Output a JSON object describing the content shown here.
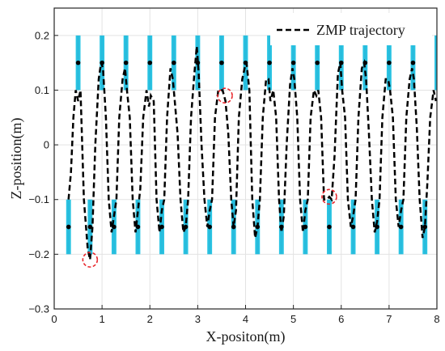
{
  "chart_data": {
    "type": "line",
    "xlabel": "X-positon(m)",
    "ylabel": "Z-position(m)",
    "xlim": [
      0,
      8
    ],
    "ylim": [
      -0.3,
      0.25
    ],
    "x_ticks": [
      0,
      1,
      2,
      3,
      4,
      5,
      6,
      7,
      8
    ],
    "y_ticks": [
      -0.3,
      -0.2,
      -0.1,
      0,
      0.1,
      0.2
    ],
    "x_tick_labels": [
      "0",
      "1",
      "2",
      "3",
      "4",
      "5",
      "6",
      "7",
      "8"
    ],
    "y_tick_labels": [
      "−0.3",
      "−0.2",
      "−0.1",
      "0",
      "0.1",
      "0.2"
    ],
    "grid": true,
    "legend": {
      "position": "top-right",
      "entries": [
        "ZMP trajectory"
      ]
    },
    "footsteps": {
      "color": "#2cc8e6",
      "width": 0.1,
      "upper": {
        "x": [
          0.5,
          1.0,
          1.5,
          2.0,
          2.5,
          3.0,
          3.5,
          4.0,
          4.5,
          5.0,
          5.5,
          6.0,
          6.5,
          7.0,
          7.5,
          8.0
        ],
        "z_range": [
          0.1,
          0.2
        ]
      },
      "lower": {
        "x": [
          0.3,
          0.75,
          1.25,
          1.75,
          2.25,
          2.75,
          3.25,
          3.75,
          4.25,
          4.75,
          5.25,
          5.75,
          6.25,
          6.75,
          7.25,
          7.75
        ],
        "z_range": [
          -0.2,
          -0.1
        ]
      }
    },
    "markers": {
      "upper": {
        "x": [
          0.5,
          1.0,
          1.5,
          2.0,
          2.5,
          3.0,
          3.5,
          4.0,
          4.5,
          5.0,
          5.5,
          6.0,
          6.5,
          7.0,
          7.5
        ],
        "z": 0.15
      },
      "lower": {
        "x": [
          0.3,
          0.75,
          1.25,
          1.75,
          2.25,
          2.75,
          3.25,
          3.75,
          4.25,
          4.75,
          5.25,
          5.75,
          6.25,
          6.75,
          7.25,
          7.75
        ],
        "z": -0.15
      }
    },
    "highlights": [
      {
        "x": 0.75,
        "z": -0.21
      },
      {
        "x": 3.57,
        "z": 0.09
      },
      {
        "x": 5.75,
        "z": -0.095
      }
    ],
    "series": [
      {
        "name": "ZMP trajectory",
        "style": "dashed",
        "color": "#000000",
        "x": [
          0.3,
          0.35,
          0.4,
          0.45,
          0.5,
          0.55,
          0.62,
          0.7,
          0.75,
          0.8,
          0.86,
          0.93,
          0.98,
          1.02,
          1.08,
          1.14,
          1.2,
          1.25,
          1.3,
          1.36,
          1.43,
          1.48,
          1.52,
          1.58,
          1.64,
          1.7,
          1.75,
          1.8,
          1.86,
          1.93,
          1.98,
          2.02,
          2.08,
          2.14,
          2.2,
          2.25,
          2.3,
          2.36,
          2.43,
          2.48,
          2.52,
          2.58,
          2.64,
          2.7,
          2.75,
          2.8,
          2.86,
          2.93,
          2.98,
          3.02,
          3.08,
          3.14,
          3.2,
          3.25,
          3.3,
          3.36,
          3.43,
          3.48,
          3.52,
          3.58,
          3.64,
          3.7,
          3.75,
          3.8,
          3.86,
          3.93,
          3.98,
          4.02,
          4.08,
          4.14,
          4.2,
          4.25,
          4.3,
          4.36,
          4.43,
          4.48,
          4.52,
          4.58,
          4.64,
          4.7,
          4.75,
          4.8,
          4.86,
          4.93,
          4.98,
          5.02,
          5.08,
          5.14,
          5.2,
          5.25,
          5.3,
          5.36,
          5.43,
          5.48,
          5.52,
          5.58,
          5.64,
          5.7,
          5.75,
          5.8,
          5.86,
          5.93,
          5.98,
          6.02,
          6.08,
          6.14,
          6.2,
          6.25,
          6.3,
          6.36,
          6.43,
          6.48,
          6.52,
          6.58,
          6.64,
          6.7,
          6.75,
          6.8,
          6.86,
          6.93,
          6.98,
          7.02,
          7.08,
          7.14,
          7.2,
          7.25,
          7.3,
          7.36,
          7.43,
          7.48,
          7.52,
          7.58,
          7.64,
          7.7,
          7.75,
          7.8,
          7.86,
          7.93,
          7.98
        ],
        "z": [
          -0.1,
          -0.05,
          0.05,
          0.1,
          0.08,
          0.1,
          -0.1,
          -0.19,
          -0.21,
          -0.15,
          0.0,
          0.12,
          0.15,
          0.14,
          0.05,
          -0.1,
          -0.16,
          -0.13,
          -0.1,
          0.05,
          0.12,
          0.14,
          0.1,
          0.05,
          -0.1,
          -0.16,
          -0.12,
          -0.08,
          0.05,
          0.1,
          0.07,
          0.09,
          0.08,
          -0.1,
          -0.16,
          -0.12,
          -0.1,
          0.05,
          0.14,
          0.12,
          0.08,
          0.02,
          -0.1,
          -0.16,
          -0.15,
          -0.1,
          0.05,
          0.13,
          0.18,
          0.13,
          0.0,
          -0.1,
          -0.15,
          -0.12,
          -0.1,
          0.05,
          0.1,
          0.1,
          0.1,
          0.08,
          0.02,
          -0.1,
          -0.15,
          -0.12,
          0.05,
          0.12,
          0.14,
          0.15,
          0.1,
          -0.1,
          -0.17,
          -0.15,
          -0.1,
          0.05,
          0.12,
          0.12,
          0.08,
          0.1,
          0.05,
          -0.1,
          -0.16,
          -0.13,
          0.0,
          0.11,
          0.14,
          0.12,
          0.05,
          -0.1,
          -0.16,
          -0.12,
          -0.1,
          0.05,
          0.1,
          0.09,
          0.1,
          0.05,
          -0.1,
          -0.1,
          -0.095,
          -0.1,
          -0.02,
          0.13,
          0.15,
          0.1,
          0.05,
          -0.1,
          -0.15,
          -0.13,
          -0.1,
          0.05,
          0.14,
          0.15,
          0.12,
          0.02,
          -0.1,
          -0.16,
          -0.14,
          -0.1,
          0.05,
          0.12,
          0.12,
          0.1,
          0.05,
          -0.1,
          -0.15,
          -0.12,
          -0.1,
          0.05,
          0.12,
          0.14,
          0.12,
          0.03,
          -0.1,
          -0.17,
          -0.15,
          -0.07,
          0.05,
          0.1,
          0.08
        ]
      }
    ]
  }
}
